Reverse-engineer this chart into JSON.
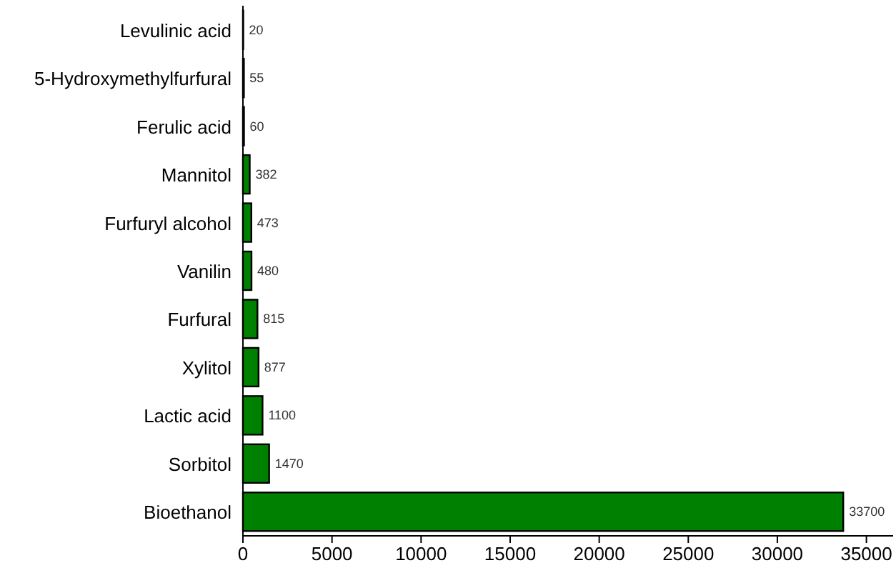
{
  "chart_data": {
    "type": "bar",
    "orientation": "horizontal",
    "categories": [
      "Levulinic acid",
      "5-Hydroxymethylfurfural",
      "Ferulic acid",
      "Mannitol",
      "Furfuryl alcohol",
      "Vanilin",
      "Furfural",
      "Xylitol",
      "Lactic acid",
      "Sorbitol",
      "Bioethanol"
    ],
    "values": [
      20,
      55,
      60,
      382,
      473,
      480,
      815,
      877,
      1100,
      1470,
      33700
    ],
    "color": "#008000",
    "xlim": [
      0,
      36500
    ],
    "xticks": [
      0,
      5000,
      10000,
      15000,
      20000,
      25000,
      30000,
      35000
    ],
    "data_labels": true,
    "grid": false
  }
}
